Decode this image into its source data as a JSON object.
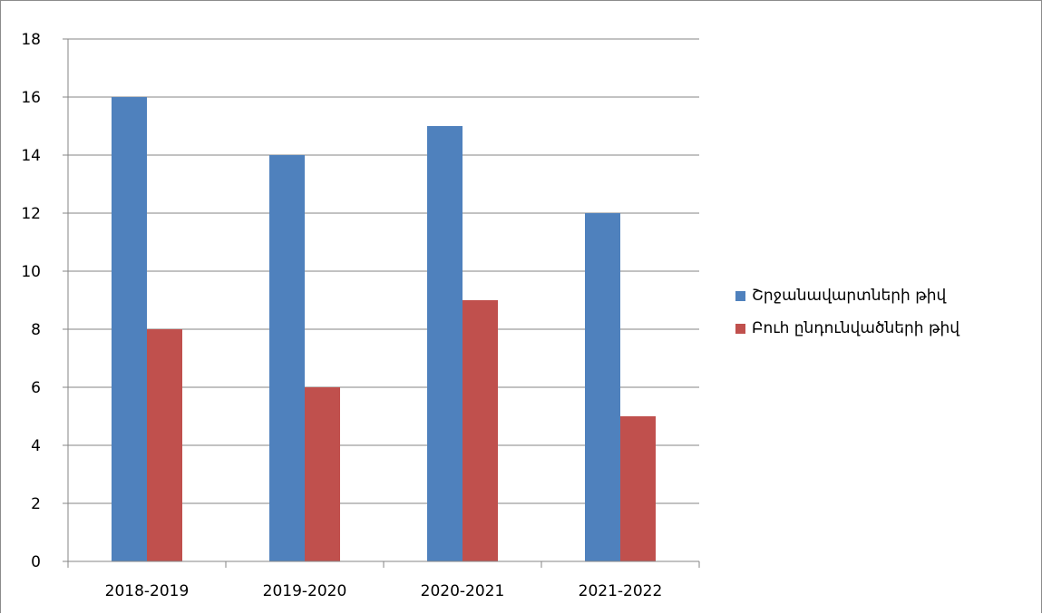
{
  "chart_data": {
    "type": "bar",
    "categories": [
      "2018-2019",
      "2019-2020",
      "2020-2021",
      "2021-2022"
    ],
    "series": [
      {
        "name": "Շրջանավարտների թիվ",
        "values": [
          16,
          14,
          15,
          12
        ],
        "color": "#4f81bd"
      },
      {
        "name": "Բուհ ընդունվածների թիվ",
        "values": [
          8,
          6,
          9,
          5
        ],
        "color": "#c0504d"
      }
    ],
    "yticks": [
      "0",
      "2",
      "4",
      "6",
      "8",
      "10",
      "12",
      "14",
      "16",
      "18"
    ],
    "ylim": [
      0,
      18
    ],
    "grid": true,
    "legend_position": "right"
  }
}
